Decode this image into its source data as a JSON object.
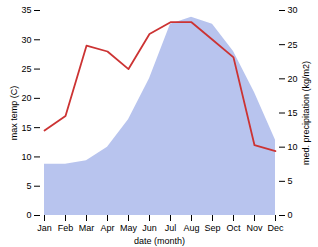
{
  "chart_data": {
    "type": "line",
    "xlabel": "date (month)",
    "ylabel": "max temp (C)",
    "y2label": "med. precipitation (kg/m2)",
    "categories": [
      "Jan",
      "Feb",
      "Mar",
      "Apr",
      "May",
      "Jun",
      "Jul",
      "Aug",
      "Sep",
      "Oct",
      "Nov",
      "Dec"
    ],
    "series": [
      {
        "type": "area",
        "axis": "y2",
        "color": "#b8c4ee",
        "values": [
          7.5,
          7.5,
          8,
          10,
          14,
          20,
          28,
          29,
          28,
          24,
          18,
          11
        ]
      },
      {
        "type": "line",
        "color": "#cc3333",
        "values": [
          14.5,
          17,
          29,
          28,
          25,
          31,
          33,
          33,
          30,
          27,
          12,
          11
        ]
      }
    ],
    "ylim": [
      0,
      35
    ],
    "yticks": [
      0,
      5,
      10,
      15,
      20,
      25,
      30,
      35
    ],
    "y2lim": [
      0,
      30
    ],
    "y2ticks": [
      0,
      5,
      10,
      15,
      20,
      25,
      30
    ],
    "grid": false
  }
}
